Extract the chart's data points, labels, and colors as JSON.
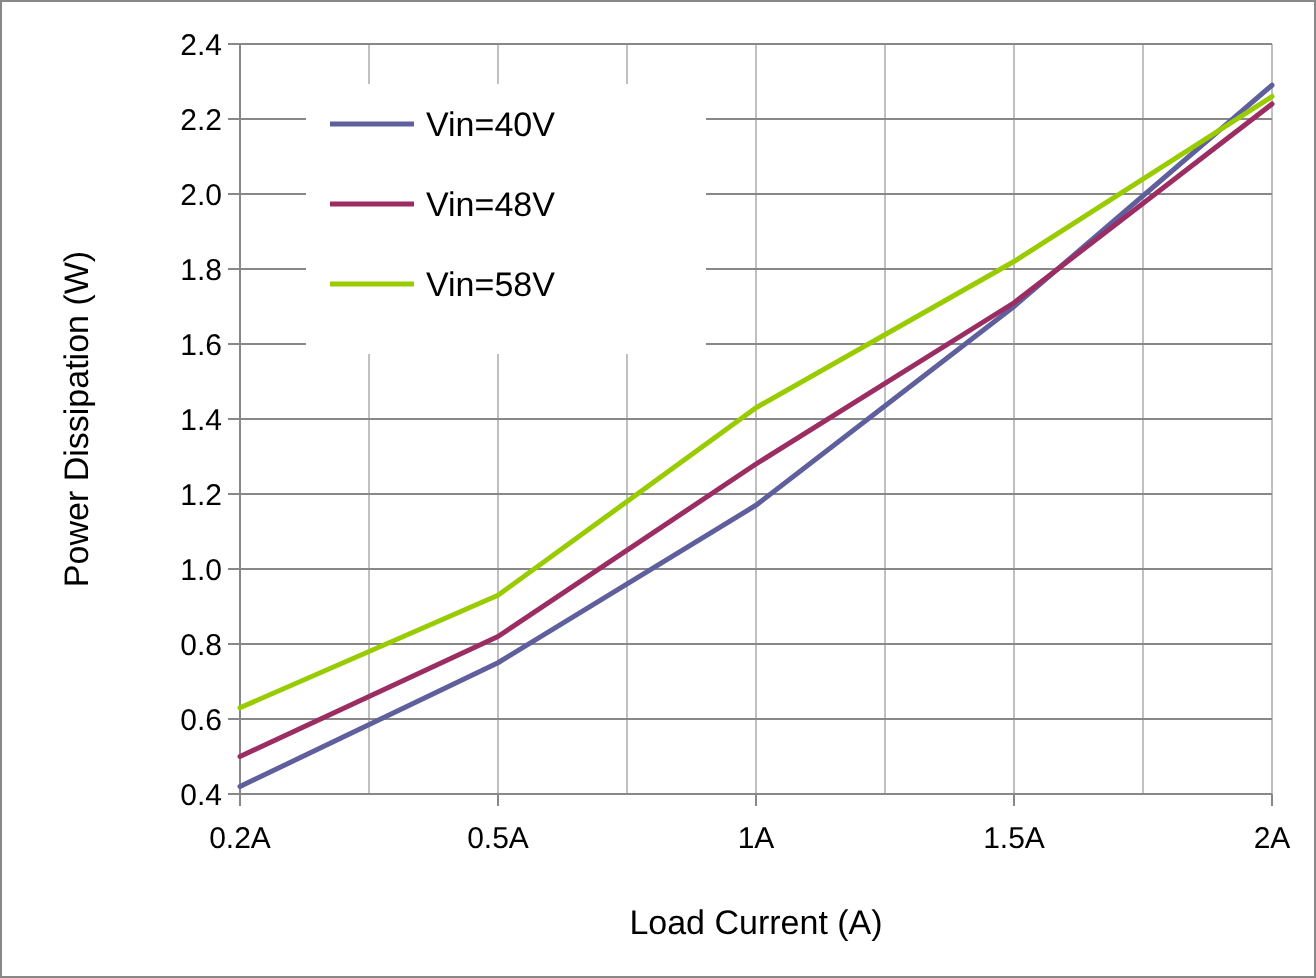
{
  "chart_data": {
    "type": "line",
    "xlabel": "Load Current (A)",
    "ylabel": "Power Dissipation (W)",
    "categories": [
      "0.2A",
      "0.5A",
      "1A",
      "1.5A",
      "2A"
    ],
    "ylim": [
      0.4,
      2.4
    ],
    "yticks": [
      0.4,
      0.6,
      0.8,
      {
        "value": 1,
        "label": "1.0"
      },
      1.2,
      1.4,
      1.6,
      1.8,
      {
        "value": 2,
        "label": "2.0"
      },
      2.2,
      2.4
    ],
    "grid": true,
    "legend": "top left",
    "marker": "none",
    "line_style": "solid",
    "series": [
      {
        "name": "Vin=40V",
        "color": "#5f5f9e",
        "values": [
          0.42,
          0.75,
          1.17,
          1.7,
          2.29
        ]
      },
      {
        "name": "Vin=48V",
        "color": "#9b2d63",
        "values": [
          0.5,
          0.82,
          1.28,
          1.71,
          2.24
        ]
      },
      {
        "name": "Vin=58V",
        "color": "#99cc00",
        "values": [
          0.63,
          0.93,
          1.43,
          1.82,
          2.26
        ]
      }
    ]
  }
}
